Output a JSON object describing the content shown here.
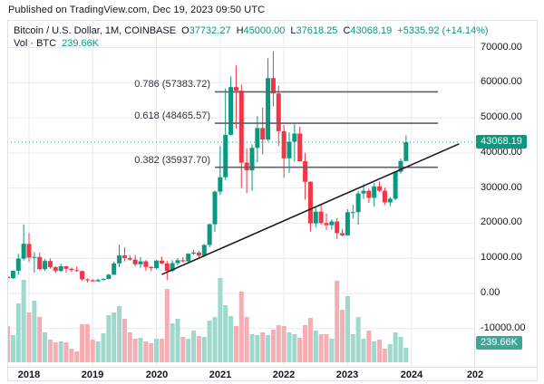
{
  "published_line": "Published on TradingView.com, Dec 19, 2023 09:50 UTC",
  "legend": {
    "symbol": "Bitcoin / U.S. Dollar, 1M, COINBASE",
    "o_label": "O",
    "o_value": "37732.27",
    "h_label": "H",
    "h_value": "45000.00",
    "l_label": "L",
    "l_value": "37618.25",
    "c_label": "C",
    "c_value": "43068.19",
    "change": "+5335.92 (+14.14%)",
    "vol_label": "Vol · BTC",
    "vol_value": "239.66K"
  },
  "price_badge": "43068.19",
  "volume_badge": "239.66K",
  "colors": {
    "up": "#089981",
    "down": "#F23645",
    "volume_up": "#9fd8cc",
    "volume_down": "#f3afb3",
    "badge_price": "#089981",
    "badge_volume": "#3aa79a",
    "grid": "#e7eaef",
    "fib_line": "#5d616b",
    "trend_line": "#1a1c20",
    "current_price_line": "#089981",
    "axis_text": "#131722"
  },
  "chart_data": {
    "type": "candlestick",
    "symbol": "Bitcoin / U.S. Dollar",
    "interval": "1M",
    "exchange": "COINBASE",
    "current_price": 43068.19,
    "current_volume_k": 239.66,
    "y_ticks": [
      70000,
      60000,
      50000,
      40000,
      30000,
      20000,
      10000,
      0,
      -10000
    ],
    "y_tick_labels": [
      "70000.00",
      "60000.00",
      "50000.00",
      "40000.00",
      "30000.00",
      "20000.00",
      "10000.00",
      "0.00",
      "-10000.00"
    ],
    "x_ticks": [
      {
        "label": "2018",
        "month_index": 4
      },
      {
        "label": "2019",
        "month_index": 16
      },
      {
        "label": "2020",
        "month_index": 28
      },
      {
        "label": "2021",
        "month_index": 40
      },
      {
        "label": "2022",
        "month_index": 52
      },
      {
        "label": "2023",
        "month_index": 64
      },
      {
        "label": "2024",
        "month_index": 76
      },
      {
        "label": "202",
        "month_index": 88
      }
    ],
    "fib_levels": [
      {
        "label": "0.786 (57383.72)",
        "ratio": 0.786,
        "price": 57383.72
      },
      {
        "label": "0.618 (48465.57)",
        "ratio": 0.618,
        "price": 48465.57
      },
      {
        "label": "0.382 (35937.70)",
        "ratio": 0.382,
        "price": 35937.7
      }
    ],
    "fib_extent": {
      "start_month_index": 39,
      "end_month_index": 81
    },
    "trend_line": {
      "from_month_index": 29,
      "from_price": 5400,
      "to_month_index": 85,
      "to_price": 42600
    },
    "columns": [
      "month",
      "open",
      "high",
      "low",
      "close",
      "volume_k"
    ],
    "rows": [
      [
        "2017-09",
        4735,
        4975,
        2817,
        4338,
        600
      ],
      [
        "2017-10",
        4341,
        6470,
        4110,
        6468,
        450
      ],
      [
        "2017-11",
        6468,
        11300,
        5325,
        9917,
        975
      ],
      [
        "2017-12",
        9917,
        19666,
        9380,
        14156,
        1365
      ],
      [
        "2018-01",
        14112,
        17176,
        9052,
        10221,
        825
      ],
      [
        "2018-02",
        10237,
        11786,
        5920,
        10397,
        1020
      ],
      [
        "2018-03",
        10385,
        11660,
        6600,
        6938,
        750
      ],
      [
        "2018-04",
        6922,
        9759,
        6425,
        9240,
        495
      ],
      [
        "2018-05",
        9246,
        9990,
        7032,
        7494,
        375
      ],
      [
        "2018-06",
        7494,
        7780,
        5777,
        6404,
        330
      ],
      [
        "2018-07",
        6411,
        8507,
        6070,
        7735,
        345
      ],
      [
        "2018-08",
        7735,
        7760,
        5859,
        7011,
        330
      ],
      [
        "2018-09",
        7011,
        7410,
        6111,
        6626,
        225
      ],
      [
        "2018-10",
        6626,
        7680,
        6205,
        6371,
        180
      ],
      [
        "2018-11",
        6369,
        6542,
        3617,
        4017,
        630
      ],
      [
        "2018-12",
        4024,
        4312,
        3128,
        3742,
        630
      ],
      [
        "2019-01",
        3746,
        4109,
        3349,
        3434,
        375
      ],
      [
        "2019-02",
        3434,
        4219,
        3350,
        3816,
        345
      ],
      [
        "2019-03",
        3816,
        4290,
        3671,
        4105,
        480
      ],
      [
        "2019-04",
        4105,
        5627,
        4054,
        5320,
        780
      ],
      [
        "2019-05",
        5321,
        9074,
        5319,
        8555,
        825
      ],
      [
        "2019-06",
        8555,
        13880,
        7432,
        10818,
        930
      ],
      [
        "2019-07",
        10818,
        13129,
        9101,
        10082,
        720
      ],
      [
        "2019-08",
        10080,
        10946,
        9321,
        9630,
        495
      ],
      [
        "2019-09",
        9630,
        10898,
        7714,
        8293,
        390
      ],
      [
        "2019-10",
        8293,
        10350,
        7293,
        9140,
        405
      ],
      [
        "2019-11",
        9140,
        9505,
        6515,
        7542,
        345
      ],
      [
        "2019-12",
        7542,
        7743,
        6425,
        7193,
        315
      ],
      [
        "2020-01",
        7194,
        9553,
        6853,
        9350,
        390
      ],
      [
        "2020-02",
        9351,
        10500,
        8407,
        8543,
        390
      ],
      [
        "2020-03",
        8543,
        9219,
        3782,
        6424,
        1215
      ],
      [
        "2020-04",
        6424,
        9460,
        6140,
        8620,
        645
      ],
      [
        "2020-05",
        8620,
        10067,
        8101,
        9448,
        720
      ],
      [
        "2020-06",
        9448,
        10380,
        8830,
        9138,
        420
      ],
      [
        "2020-07",
        9138,
        11450,
        8900,
        11323,
        390
      ],
      [
        "2020-08",
        11323,
        12486,
        10994,
        11649,
        525
      ],
      [
        "2020-09",
        11649,
        12050,
        9825,
        10776,
        435
      ],
      [
        "2020-10",
        10776,
        14100,
        10387,
        13797,
        420
      ],
      [
        "2020-11",
        13797,
        19863,
        13195,
        19698,
        690
      ],
      [
        "2020-12",
        19698,
        29300,
        17572,
        28990,
        750
      ],
      [
        "2021-01",
        28990,
        41950,
        28130,
        33108,
        1395
      ],
      [
        "2021-02",
        33108,
        58367,
        32296,
        45164,
        945
      ],
      [
        "2021-03",
        45164,
        61844,
        44950,
        58763,
        765
      ],
      [
        "2021-04",
        58763,
        64895,
        46930,
        57720,
        600
      ],
      [
        "2021-05",
        57720,
        59500,
        30000,
        37253,
        1170
      ],
      [
        "2021-06",
        37253,
        41330,
        28600,
        35045,
        750
      ],
      [
        "2021-07",
        35045,
        42448,
        29278,
        41461,
        465
      ],
      [
        "2021-08",
        41461,
        50500,
        37332,
        47100,
        450
      ],
      [
        "2021-09",
        47100,
        52920,
        39600,
        43824,
        495
      ],
      [
        "2021-10",
        43824,
        67000,
        43283,
        61320,
        450
      ],
      [
        "2021-11",
        61320,
        69000,
        53256,
        56950,
        540
      ],
      [
        "2021-12",
        56950,
        59100,
        42000,
        46211,
        615
      ],
      [
        "2022-01",
        46211,
        47990,
        32950,
        38483,
        600
      ],
      [
        "2022-02",
        38483,
        45821,
        34322,
        43192,
        495
      ],
      [
        "2022-03",
        43192,
        48240,
        37555,
        45538,
        465
      ],
      [
        "2022-04",
        45538,
        47448,
        37585,
        37630,
        405
      ],
      [
        "2022-05",
        37630,
        40023,
        26700,
        31792,
        615
      ],
      [
        "2022-06",
        31792,
        31957,
        17593,
        19942,
        735
      ],
      [
        "2022-07",
        19942,
        24668,
        18781,
        23296,
        525
      ],
      [
        "2022-08",
        23296,
        25211,
        19526,
        20049,
        465
      ],
      [
        "2022-09",
        20049,
        22799,
        18125,
        19425,
        465
      ],
      [
        "2022-10",
        19425,
        21085,
        18190,
        20490,
        390
      ],
      [
        "2022-11",
        20490,
        21480,
        15476,
        17163,
        1350
      ],
      [
        "2022-12",
        17163,
        18387,
        16256,
        16537,
        870
      ],
      [
        "2023-01",
        16537,
        23960,
        16490,
        23125,
        1095
      ],
      [
        "2023-02",
        23125,
        25250,
        21351,
        23141,
        465
      ],
      [
        "2023-03",
        23141,
        29184,
        19549,
        28465,
        750
      ],
      [
        "2023-04",
        28465,
        31059,
        26942,
        29233,
        390
      ],
      [
        "2023-05",
        29233,
        29820,
        25751,
        27210,
        525
      ],
      [
        "2023-06",
        27210,
        31430,
        24753,
        30472,
        345
      ],
      [
        "2023-07",
        30472,
        31850,
        28855,
        29230,
        375
      ],
      [
        "2023-08",
        29230,
        30150,
        25166,
        25931,
        225
      ],
      [
        "2023-09",
        25931,
        27480,
        24900,
        26962,
        300
      ],
      [
        "2023-10",
        26962,
        34750,
        26538,
        34656,
        495
      ],
      [
        "2023-11",
        34656,
        38450,
        34100,
        37732,
        420
      ],
      [
        "2023-12",
        37732.27,
        45000,
        37618.25,
        43068.19,
        239.66
      ]
    ]
  }
}
